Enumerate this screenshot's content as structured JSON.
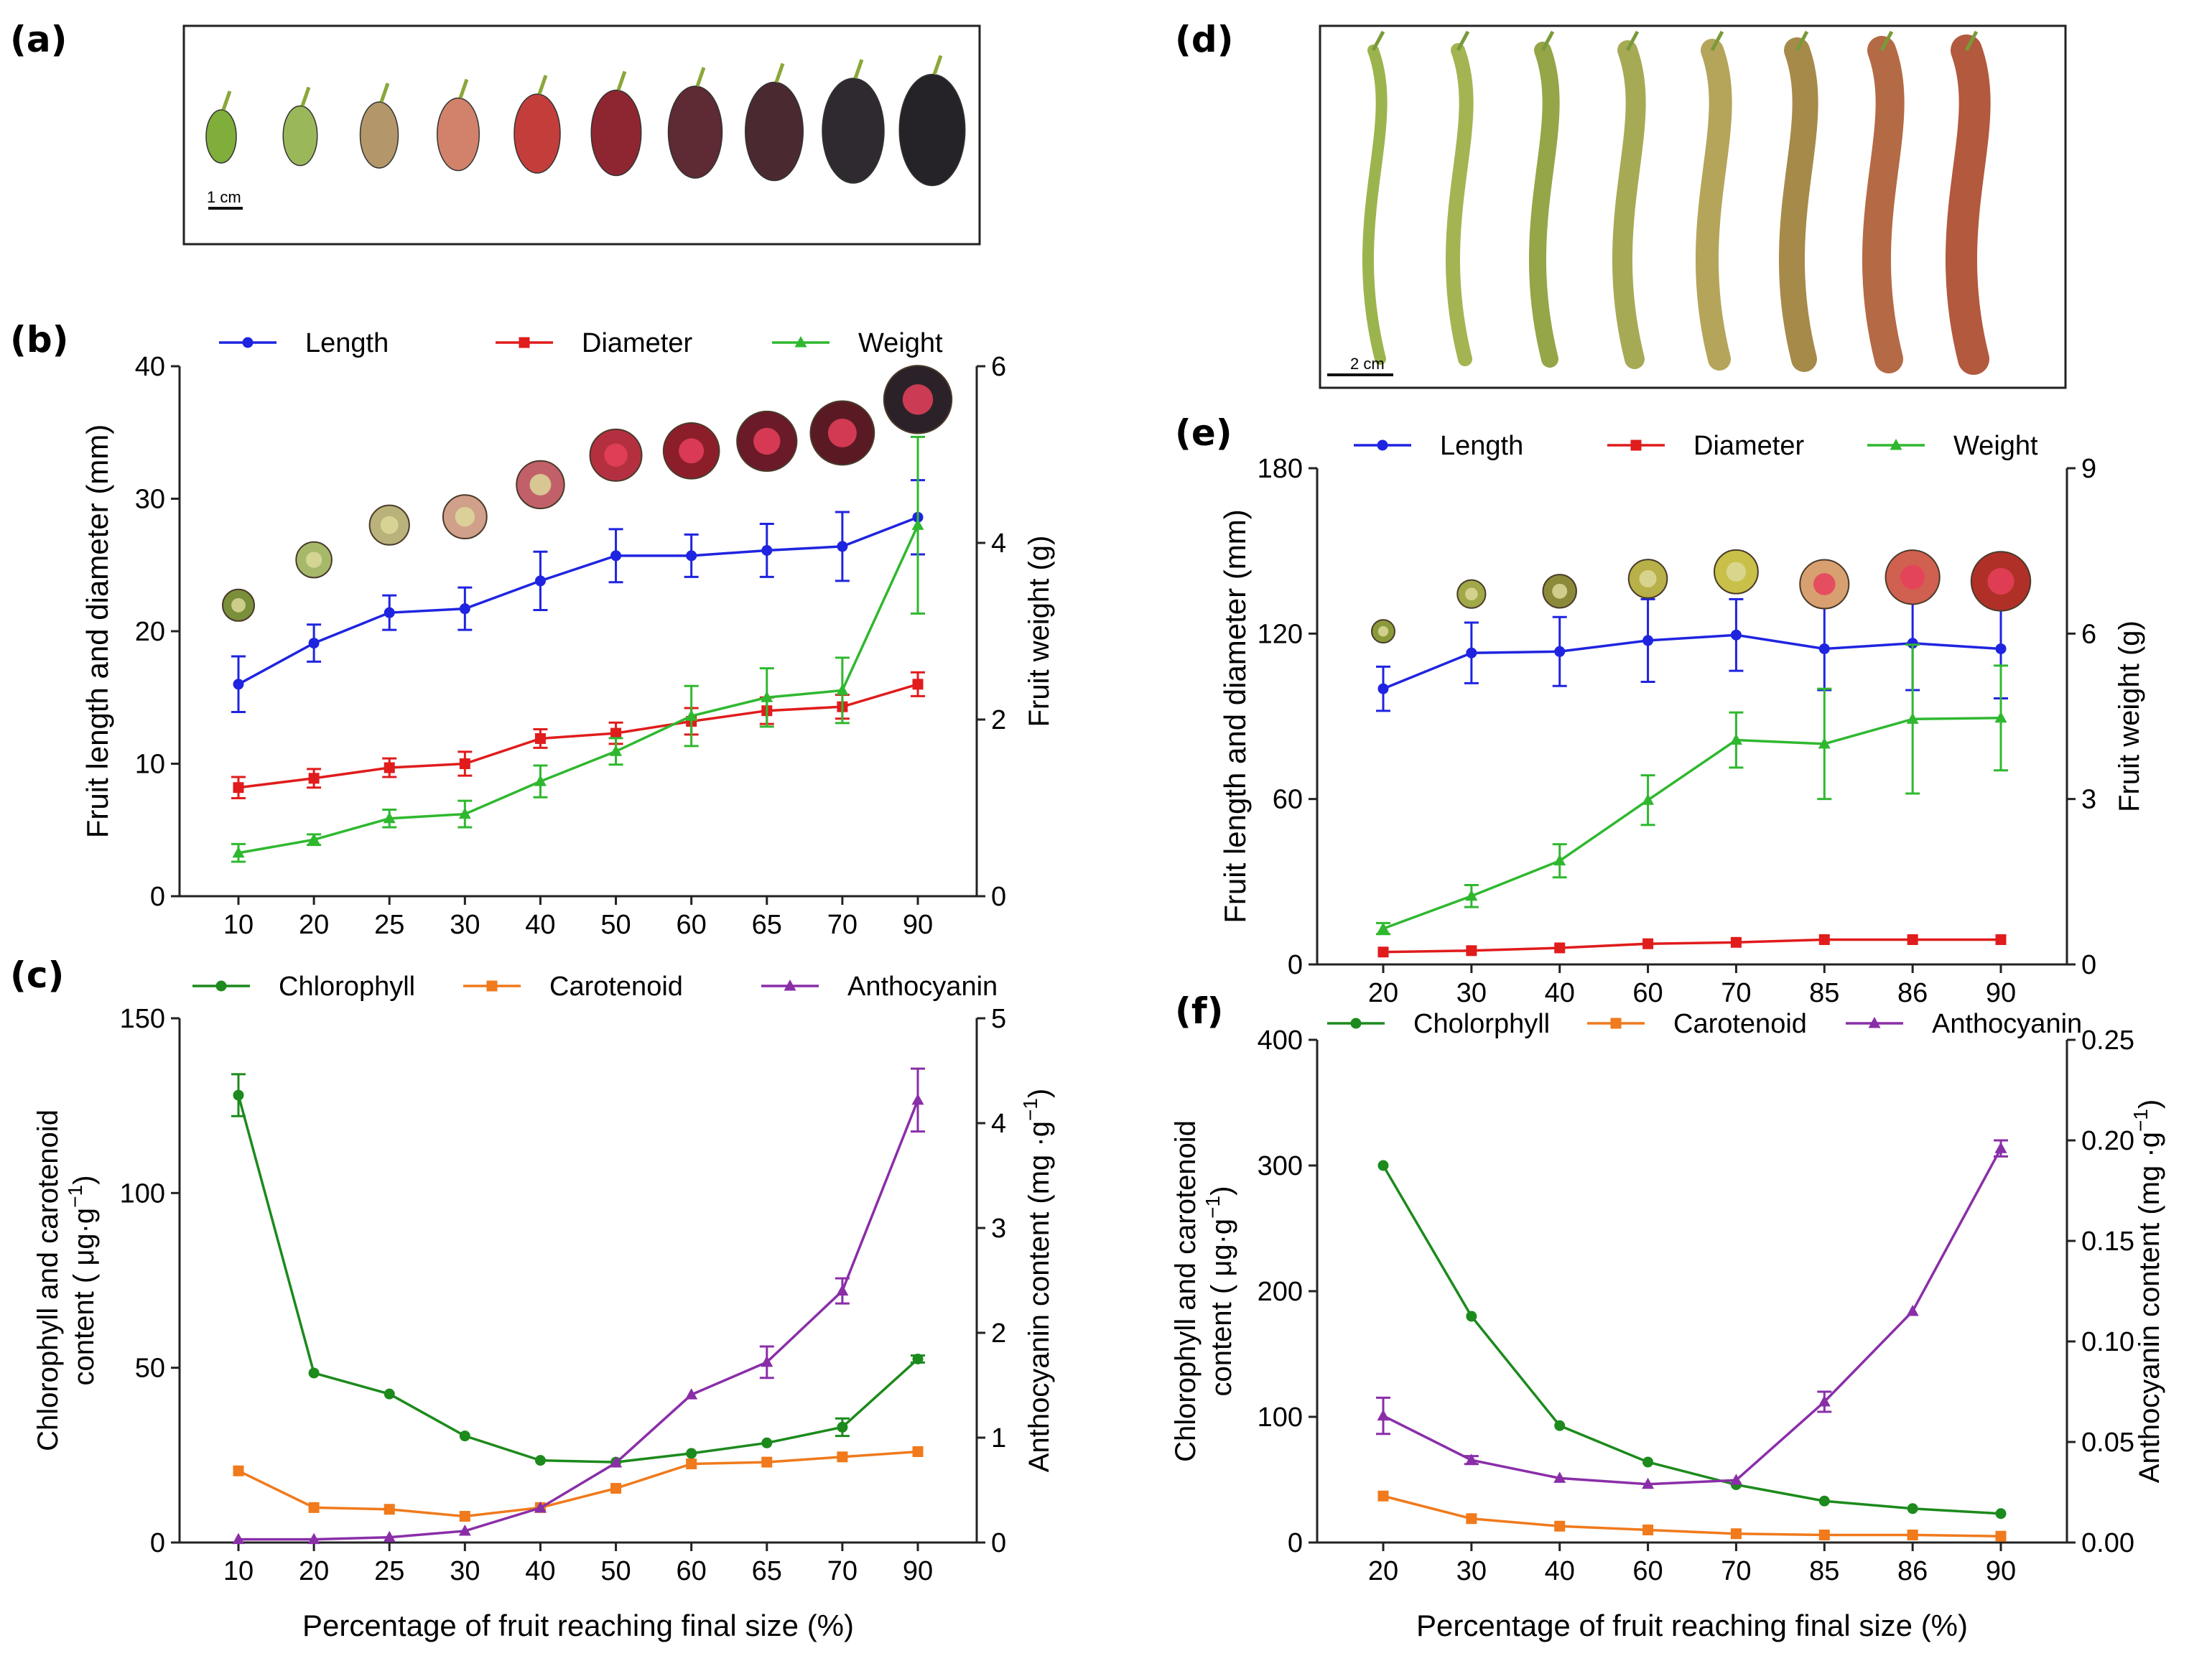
{
  "panels": {
    "a": {
      "letter": "(a)",
      "scale_label": "1 cm"
    },
    "b": {
      "letter": "(b)"
    },
    "c": {
      "letter": "(c)"
    },
    "d": {
      "letter": "(d)",
      "scale_label": "2 cm"
    },
    "e": {
      "letter": "(e)"
    },
    "f": {
      "letter": "(f)"
    }
  },
  "photo_strips": {
    "a": {
      "fruit_colors": [
        "#7fae3a",
        "#9ab85a",
        "#b3966a",
        "#d2826a",
        "#c33e3b",
        "#8e2631",
        "#5e2a33",
        "#4a2a30",
        "#2f2a30",
        "#252228"
      ]
    },
    "d": {
      "fruit_colors": [
        "#9cb44e",
        "#a4b452",
        "#94a648",
        "#a7aa55",
        "#b4a55a",
        "#a68a4a",
        "#b46a45",
        "#b2593e"
      ]
    }
  },
  "colors": {
    "length": "#1f24e0",
    "diameter": "#e01c1c",
    "weight": "#2fb82f",
    "chlorophyll": "#1c8a1c",
    "carotenoid": "#f07a1c",
    "anthocyanin": "#8a2ea8"
  },
  "chart_data": [
    {
      "id": "b",
      "type": "line",
      "categories": [
        "10",
        "20",
        "25",
        "30",
        "40",
        "50",
        "60",
        "65",
        "70",
        "90"
      ],
      "xlabel": "",
      "ylabel": "Fruit length and diameter (mm)",
      "y2label": "Fruit weight (g)",
      "ylim": [
        0,
        40
      ],
      "yticks": [
        0,
        10,
        20,
        30,
        40
      ],
      "y2lim": [
        0,
        6
      ],
      "y2ticks": [
        0,
        2,
        4,
        6
      ],
      "legend_position": "top",
      "series": [
        {
          "name": "Length",
          "axis": "left",
          "marker": "circle",
          "color_key": "length",
          "values": [
            16.0,
            19.1,
            21.4,
            21.7,
            23.8,
            25.7,
            25.7,
            26.1,
            26.4,
            28.6
          ],
          "errors": [
            2.1,
            1.4,
            1.3,
            1.6,
            2.2,
            2.0,
            1.6,
            2.0,
            2.6,
            2.8
          ]
        },
        {
          "name": "Diameter",
          "axis": "left",
          "marker": "square",
          "color_key": "diameter",
          "values": [
            8.2,
            8.9,
            9.7,
            10.0,
            11.9,
            12.3,
            13.2,
            14.0,
            14.3,
            16.0
          ],
          "errors": [
            0.8,
            0.7,
            0.7,
            0.9,
            0.7,
            0.8,
            1.0,
            1.0,
            0.9,
            0.9
          ]
        },
        {
          "name": "Weight",
          "axis": "right",
          "marker": "triangle",
          "color_key": "weight",
          "values": [
            0.49,
            0.64,
            0.88,
            0.93,
            1.3,
            1.64,
            2.04,
            2.25,
            2.33,
            4.2
          ],
          "errors": [
            0.1,
            0.06,
            0.1,
            0.15,
            0.18,
            0.15,
            0.34,
            0.33,
            0.37,
            1.0
          ]
        }
      ]
    },
    {
      "id": "c",
      "type": "line",
      "categories": [
        "10",
        "20",
        "25",
        "30",
        "40",
        "50",
        "60",
        "65",
        "70",
        "90"
      ],
      "xlabel": "Percentage of fruit reaching final size (%)",
      "ylabel_line1": "Chlorophyll and carotenoid",
      "ylabel_line2": "content ( μg·g",
      "ylabel_sup": "−1",
      "ylabel_close": ")",
      "y2label": "Anthocyanin content (mg ·g",
      "y2label_sup": "−1",
      "y2label_close": ")",
      "ylim": [
        0,
        150
      ],
      "yticks": [
        0,
        50,
        100,
        150
      ],
      "y2lim": [
        0,
        5
      ],
      "y2ticks": [
        0,
        1,
        2,
        3,
        4,
        5
      ],
      "legend_position": "top",
      "series": [
        {
          "name": "Chlorophyll",
          "axis": "left",
          "marker": "circle",
          "color_key": "chlorophyll",
          "values": [
            128,
            48.5,
            42.5,
            30.5,
            23.5,
            23.0,
            25.5,
            28.5,
            33.0,
            52.5
          ],
          "errors": [
            6,
            0,
            0,
            0,
            0,
            0,
            0,
            0,
            2.5,
            1
          ]
        },
        {
          "name": "Carotenoid",
          "axis": "left",
          "marker": "square",
          "color_key": "carotenoid",
          "values": [
            20.5,
            10.0,
            9.5,
            7.5,
            10.0,
            15.5,
            22.5,
            23.0,
            24.5,
            26.0
          ],
          "errors": [
            0,
            0,
            0,
            0,
            0,
            0,
            0,
            0,
            0,
            0
          ]
        },
        {
          "name": "Anthocyanin",
          "axis": "right",
          "marker": "triangle",
          "color_key": "anthocyanin",
          "values": [
            0.03,
            0.03,
            0.05,
            0.11,
            0.33,
            0.76,
            1.41,
            1.72,
            2.4,
            4.22
          ],
          "errors": [
            0,
            0,
            0,
            0,
            0,
            0,
            0,
            0.15,
            0.12,
            0.3
          ]
        }
      ]
    },
    {
      "id": "e",
      "type": "line",
      "categories": [
        "20",
        "30",
        "40",
        "60",
        "70",
        "85",
        "86",
        "90"
      ],
      "xlabel": "",
      "ylabel": "Fruit length and diameter (mm)",
      "y2label": "Fruit weight (g)",
      "ylim": [
        0,
        180
      ],
      "yticks": [
        0,
        60,
        120,
        180
      ],
      "y2lim": [
        0,
        9
      ],
      "y2ticks": [
        0,
        3,
        6,
        9
      ],
      "legend_position": "top",
      "series": [
        {
          "name": "Length",
          "axis": "left",
          "marker": "circle",
          "color_key": "length",
          "values": [
            100,
            113,
            113.5,
            117.5,
            119.5,
            114.5,
            116.5,
            114.5
          ],
          "errors": [
            8,
            11,
            12.5,
            15,
            13,
            15,
            17,
            18
          ]
        },
        {
          "name": "Diameter",
          "axis": "left",
          "marker": "square",
          "color_key": "diameter",
          "values": [
            4.5,
            5.0,
            6.0,
            7.5,
            8.0,
            9.0,
            9.0,
            9.0
          ],
          "errors": [
            0,
            0,
            0,
            0,
            0,
            0,
            0,
            0
          ]
        },
        {
          "name": "Weight",
          "axis": "right",
          "marker": "triangle",
          "color_key": "weight",
          "values": [
            0.65,
            1.24,
            1.88,
            2.98,
            4.07,
            4.0,
            4.45,
            4.47
          ],
          "errors": [
            0.1,
            0.2,
            0.3,
            0.45,
            0.5,
            1.0,
            1.35,
            0.95
          ]
        }
      ]
    },
    {
      "id": "f",
      "type": "line",
      "categories": [
        "20",
        "30",
        "40",
        "60",
        "70",
        "85",
        "86",
        "90"
      ],
      "xlabel": "Percentage of fruit reaching final size (%)",
      "ylabel_line1": "Chlorophyll and carotenoid",
      "ylabel_line2": "content ( μg·g",
      "ylabel_sup": "−1",
      "ylabel_close": ")",
      "y2label": "Anthocyanin content (mg ·g",
      "y2label_sup": "−1",
      "y2label_close": ")",
      "ylim": [
        0,
        400
      ],
      "yticks": [
        0,
        100,
        200,
        300,
        400
      ],
      "y2lim": [
        0,
        0.25
      ],
      "y2ticks": [
        "0.00",
        "0.05",
        "0.10",
        "0.15",
        "0.20",
        "0.25"
      ],
      "legend_position": "top",
      "series": [
        {
          "name": "Cholorphyll",
          "axis": "left",
          "marker": "circle",
          "color_key": "chlorophyll",
          "values": [
            300,
            180,
            93,
            64,
            46,
            33,
            27,
            23
          ],
          "errors": [
            0,
            0,
            0,
            0,
            0,
            0,
            0,
            0
          ]
        },
        {
          "name": "Carotenoid",
          "axis": "left",
          "marker": "square",
          "color_key": "carotenoid",
          "values": [
            37,
            19,
            13,
            10,
            7,
            6,
            6,
            5
          ],
          "errors": [
            0,
            0,
            0,
            0,
            0,
            0,
            0,
            0
          ]
        },
        {
          "name": "Anthocyanin",
          "axis": "right",
          "marker": "triangle",
          "color_key": "anthocyanin",
          "values": [
            0.063,
            0.041,
            0.032,
            0.029,
            0.031,
            0.07,
            0.115,
            0.196
          ],
          "errors": [
            0.009,
            0.002,
            0,
            0,
            0,
            0.005,
            0,
            0.004
          ]
        }
      ]
    }
  ]
}
